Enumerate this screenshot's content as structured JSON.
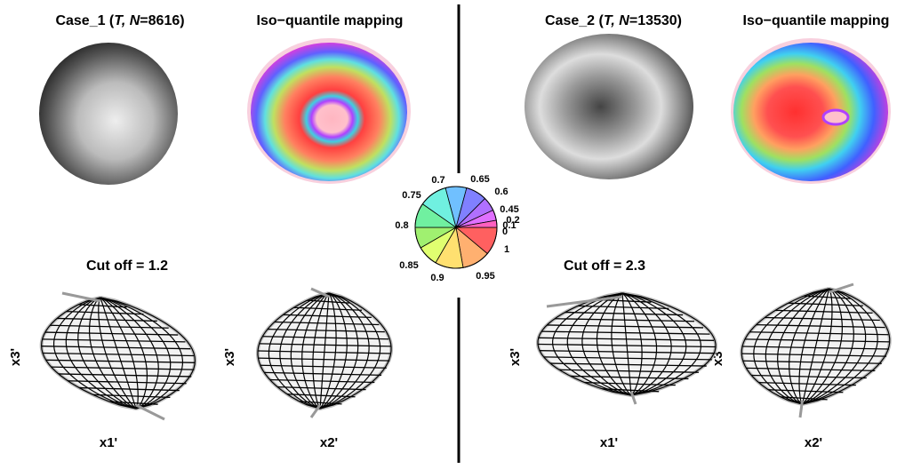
{
  "panels": [
    {
      "case_title": [
        "Case_1 (",
        "T, N",
        "=8616)"
      ],
      "mapping_title": "Iso−quantile mapping",
      "cutoff": "Cut off = 1.2",
      "axis_labels": [
        "x3'",
        "x1'",
        "x3'",
        "x2'"
      ]
    },
    {
      "case_title": [
        "Case_2 (",
        "T, N",
        "=13530)"
      ],
      "mapping_title": "Iso−quantile mapping",
      "cutoff": "Cut off = 2.3",
      "axis_labels": [
        "x3'",
        "x1'",
        "x3'",
        "x2'"
      ]
    }
  ],
  "quantile_wheel": {
    "labels": [
      "0.7",
      "0.65",
      "0.6",
      "0.45",
      "0.2",
      "0.1",
      "0",
      "1",
      "0.95",
      "0.9",
      "0.85",
      "0.8",
      "0.75"
    ]
  }
}
